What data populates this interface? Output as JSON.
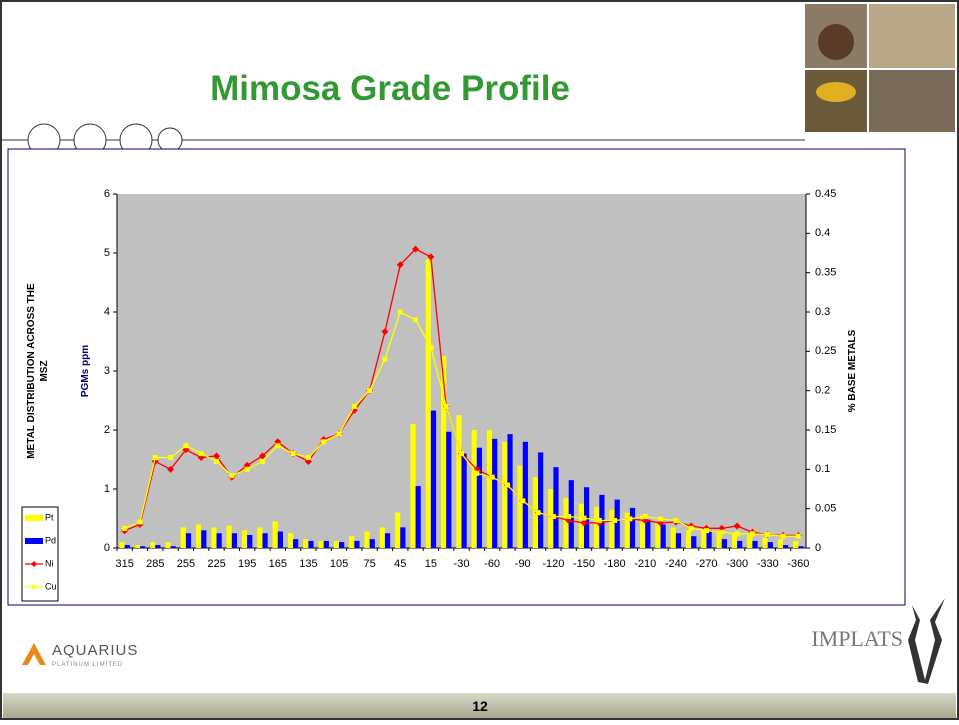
{
  "slide": {
    "title": "Mimosa Grade Profile",
    "page_number": "12",
    "left_logo": "AQUARIUS",
    "left_logo_sub": "PLATINUM LIMITED",
    "right_logo": "IMPLATS"
  },
  "chart_data": {
    "type": "bar-line",
    "y_label": [
      "METAL DISTRIBUTION ACROSS THE",
      "MSZ"
    ],
    "y_unit_label": "PGMs ppm",
    "y2_label": "% BASE METALS",
    "categories": [
      315,
      null,
      285,
      null,
      255,
      null,
      225,
      null,
      195,
      null,
      165,
      null,
      135,
      null,
      105,
      null,
      75,
      null,
      45,
      null,
      15,
      null,
      -30,
      null,
      -60,
      null,
      -90,
      null,
      -120,
      null,
      -150,
      null,
      -180,
      null,
      -210,
      null,
      -240,
      null,
      -270,
      null,
      -300,
      null,
      -330,
      null,
      -360
    ],
    "ylim": [
      0,
      6
    ],
    "yticks": [
      0,
      1,
      2,
      3,
      4,
      5,
      6
    ],
    "y2lim": [
      0,
      0.45
    ],
    "y2ticks": [
      0,
      0.05,
      0.1,
      0.15,
      0.2,
      0.25,
      0.3,
      0.35,
      0.4,
      0.45
    ],
    "legend": "bottom-left",
    "plot_background": "#c0c0c0",
    "series": [
      {
        "name": "Pt",
        "type": "bar",
        "color": "#ffff00",
        "axis": "y",
        "values": [
          0.1,
          0.05,
          0.1,
          0.1,
          0.35,
          0.4,
          0.35,
          0.38,
          0.3,
          0.35,
          0.45,
          0.25,
          0.15,
          0.12,
          0.12,
          0.2,
          0.28,
          0.35,
          0.6,
          2.1,
          4.9,
          3.25,
          2.25,
          2.0,
          2.0,
          1.8,
          1.4,
          1.2,
          1.0,
          0.85,
          0.75,
          0.7,
          0.65,
          0.6,
          0.55,
          0.45,
          0.35,
          0.3,
          0.3,
          0.28,
          0.25,
          0.22,
          0.18,
          0.15,
          0.12
        ]
      },
      {
        "name": "Pd",
        "type": "bar",
        "color": "#0000ff",
        "axis": "y",
        "values": [
          0.05,
          0.03,
          0.05,
          0.03,
          0.25,
          0.3,
          0.25,
          0.25,
          0.22,
          0.25,
          0.28,
          0.15,
          0.12,
          0.12,
          0.1,
          0.12,
          0.15,
          0.25,
          0.35,
          1.05,
          2.33,
          1.97,
          1.6,
          1.7,
          1.85,
          1.93,
          1.8,
          1.62,
          1.37,
          1.15,
          1.03,
          0.9,
          0.82,
          0.68,
          0.48,
          0.4,
          0.25,
          0.2,
          0.3,
          0.15,
          0.12,
          0.12,
          0.1,
          0.05,
          0.03
        ]
      },
      {
        "name": "Ni",
        "type": "line",
        "color": "#ff0000",
        "marker": "diamond",
        "axis": "y2",
        "values": [
          0.022,
          0.03,
          0.11,
          0.1,
          0.125,
          0.115,
          0.117,
          0.09,
          0.105,
          0.117,
          0.135,
          0.12,
          0.11,
          0.138,
          0.145,
          0.175,
          0.2,
          0.275,
          0.36,
          0.38,
          0.37,
          0.18,
          0.12,
          0.1,
          0.09,
          0.08,
          0.06,
          0.045,
          0.04,
          0.035,
          0.032,
          0.032,
          0.035,
          0.037,
          0.035,
          0.032,
          0.033,
          0.028,
          0.025,
          0.025,
          0.028,
          0.02,
          0.017,
          0.016,
          0.016
        ]
      },
      {
        "name": "Cu",
        "type": "line",
        "color": "#ffff00",
        "marker": "square",
        "axis": "y2",
        "values": [
          0.025,
          0.033,
          0.115,
          0.115,
          0.13,
          0.12,
          0.11,
          0.092,
          0.1,
          0.11,
          0.13,
          0.12,
          0.115,
          0.135,
          0.145,
          0.18,
          0.2,
          0.24,
          0.3,
          0.29,
          0.255,
          0.18,
          0.12,
          0.095,
          0.09,
          0.08,
          0.06,
          0.045,
          0.04,
          0.04,
          0.038,
          0.035,
          0.035,
          0.037,
          0.04,
          0.037,
          0.035,
          0.025,
          0.022,
          0.02,
          0.018,
          0.018,
          0.017,
          0.015,
          0.015
        ]
      }
    ]
  }
}
